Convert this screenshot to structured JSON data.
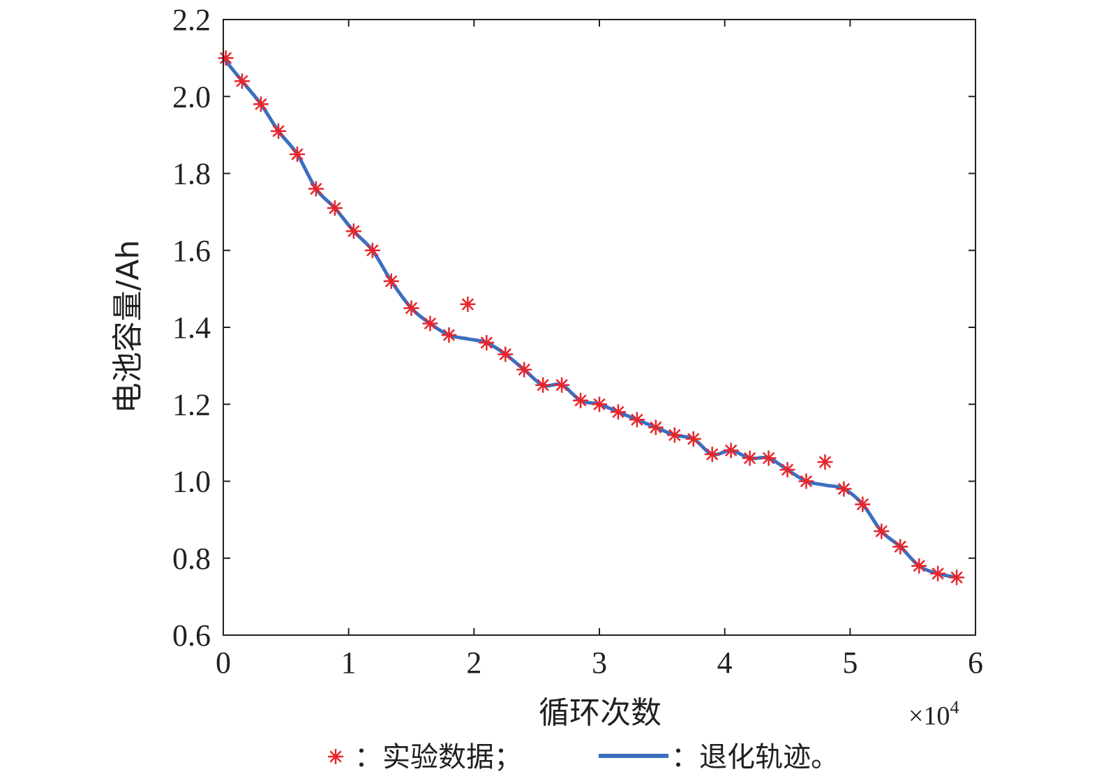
{
  "chart_data": {
    "type": "scatter",
    "xlabel": "循环次数",
    "ylabel": "电池容量/Ah",
    "x_multiplier": "×10",
    "x_multiplier_exp": "4",
    "xlim": [
      0,
      6
    ],
    "ylim": [
      0.6,
      2.2
    ],
    "xticks": [
      "0",
      "1",
      "2",
      "3",
      "4",
      "5",
      "6"
    ],
    "yticks": [
      "0.6",
      "0.8",
      "1.0",
      "1.2",
      "1.4",
      "1.6",
      "1.8",
      "2.0",
      "2.2"
    ],
    "grid": false,
    "colors": {
      "experimental": "#e8242a",
      "trajectory": "#3b6fbf",
      "axis": "#231f20"
    },
    "series": [
      {
        "name": "实验数据",
        "kind": "markers",
        "marker": "asterisk",
        "x": [
          0.02,
          0.15,
          0.3,
          0.44,
          0.59,
          0.74,
          0.89,
          1.04,
          1.19,
          1.34,
          1.5,
          1.65,
          1.8,
          1.95,
          2.1,
          2.25,
          2.4,
          2.55,
          2.7,
          2.85,
          3.0,
          3.15,
          3.3,
          3.45,
          3.6,
          3.75,
          3.9,
          4.05,
          4.2,
          4.35,
          4.5,
          4.65,
          4.8,
          4.95,
          5.1,
          5.25,
          5.4,
          5.55,
          5.7,
          5.85
        ],
        "y": [
          2.1,
          2.04,
          1.98,
          1.91,
          1.85,
          1.76,
          1.71,
          1.65,
          1.6,
          1.52,
          1.45,
          1.41,
          1.38,
          1.46,
          1.36,
          1.33,
          1.29,
          1.25,
          1.25,
          1.21,
          1.2,
          1.18,
          1.16,
          1.14,
          1.12,
          1.11,
          1.07,
          1.08,
          1.06,
          1.06,
          1.03,
          1.0,
          1.05,
          0.98,
          0.94,
          0.87,
          0.83,
          0.78,
          0.76,
          0.75
        ]
      },
      {
        "name": "退化轨迹",
        "kind": "line",
        "x": [
          0.0,
          0.15,
          0.3,
          0.44,
          0.59,
          0.74,
          0.89,
          1.04,
          1.19,
          1.34,
          1.5,
          1.65,
          1.8,
          1.95,
          2.1,
          2.25,
          2.4,
          2.55,
          2.7,
          2.85,
          3.0,
          3.15,
          3.3,
          3.45,
          3.6,
          3.75,
          3.9,
          4.05,
          4.2,
          4.35,
          4.5,
          4.65,
          4.8,
          4.95,
          5.1,
          5.25,
          5.4,
          5.55,
          5.7,
          5.85
        ],
        "y": [
          2.1,
          2.04,
          1.98,
          1.91,
          1.85,
          1.76,
          1.71,
          1.65,
          1.6,
          1.52,
          1.45,
          1.41,
          1.38,
          1.37,
          1.36,
          1.33,
          1.29,
          1.25,
          1.25,
          1.21,
          1.2,
          1.18,
          1.16,
          1.14,
          1.12,
          1.11,
          1.07,
          1.08,
          1.06,
          1.06,
          1.03,
          1.0,
          0.99,
          0.98,
          0.94,
          0.87,
          0.83,
          0.78,
          0.76,
          0.75
        ]
      }
    ],
    "legend": {
      "items": [
        {
          "marker": "asterisk",
          "label": "：实验数据；"
        },
        {
          "marker": "line",
          "label": "：退化轨迹。"
        }
      ],
      "placement": "bottom"
    }
  }
}
